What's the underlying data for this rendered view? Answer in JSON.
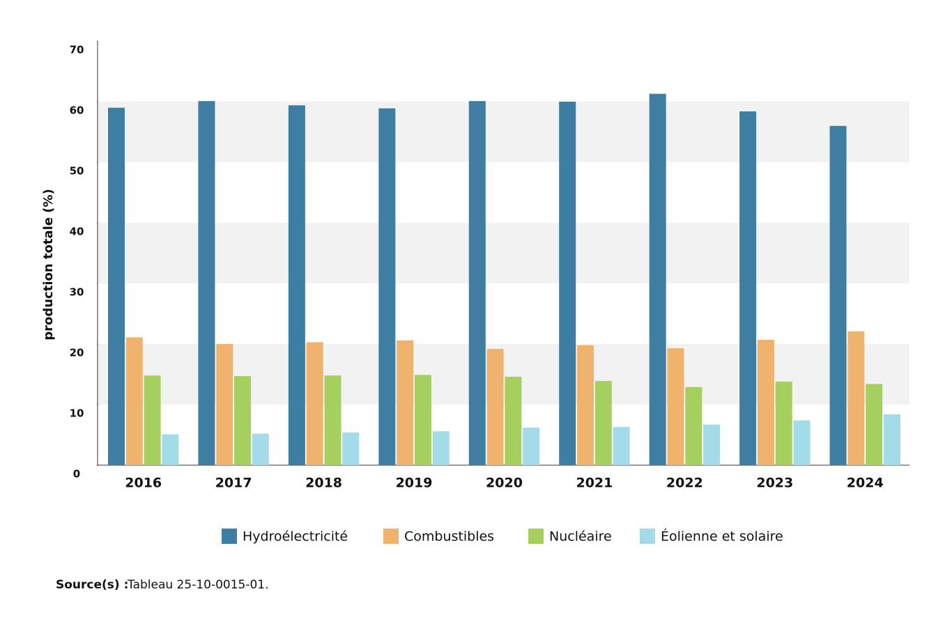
{
  "chart_data": {
    "type": "bar",
    "y_label": "production totale (%)",
    "categories": [
      "2016",
      "2017",
      "2018",
      "2019",
      "2020",
      "2021",
      "2022",
      "2023",
      "2024"
    ],
    "series": [
      {
        "name": "Hydroélectricité",
        "color": "#3f7ea3",
        "values": [
          59.0,
          60.1,
          59.4,
          58.9,
          60.1,
          60.0,
          61.3,
          58.4,
          56.0
        ]
      },
      {
        "name": "Combustibles",
        "color": "#f0b36e",
        "values": [
          21.1,
          20.0,
          20.3,
          20.6,
          19.2,
          19.8,
          19.3,
          20.7,
          22.1
        ]
      },
      {
        "name": "Nucléaire",
        "color": "#a5cf5f",
        "values": [
          14.8,
          14.7,
          14.8,
          14.9,
          14.6,
          13.9,
          12.9,
          13.8,
          13.4
        ]
      },
      {
        "name": "Éolienne et solaire",
        "color": "#a3dbe8",
        "values": [
          5.1,
          5.2,
          5.4,
          5.6,
          6.2,
          6.3,
          6.7,
          7.4,
          8.4
        ]
      }
    ],
    "ylim": [
      0,
      70
    ],
    "yticks": [
      0,
      10,
      20,
      30,
      40,
      50,
      60,
      70
    ],
    "grid_bands": true,
    "source_label": "Source(s) :",
    "source_text": "Tableau 25-10-0015-01."
  }
}
